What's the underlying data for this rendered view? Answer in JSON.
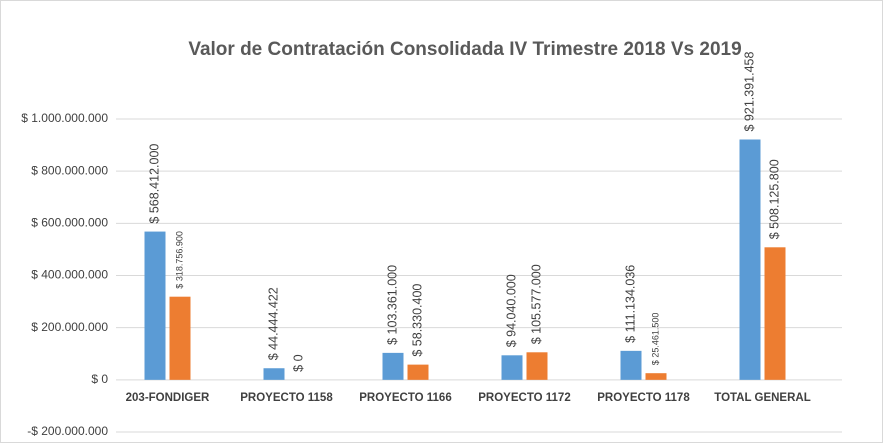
{
  "chart_data": {
    "type": "bar",
    "title": "Valor de Contratación Consolidada IV Trimestre 2018 Vs 2019",
    "categories": [
      "203-FONDIGER",
      "PROYECTO  1158",
      "PROYECTO 1166",
      "PROYECTO 1172",
      "PROYECTO 1178",
      "TOTAL GENERAL"
    ],
    "series": [
      {
        "color": "#5b9bd5",
        "values": [
          568412000,
          44444422,
          103361000,
          94040000,
          111134036,
          921391458
        ],
        "value_labels": [
          "$ 568.412.000",
          "$ 44.444.422",
          "$ 103.361.000",
          "$ 94.040.000",
          "$ 111.134.036",
          "$ 921.391.458"
        ]
      },
      {
        "color": "#ed7d31",
        "values": [
          318756900,
          0,
          58330400,
          105577000,
          25461500,
          508125800
        ],
        "value_labels": [
          "$ 318.756.900",
          "$ 0",
          "$ 58.330.400",
          "$ 105.577.000",
          "$ 25.461.500",
          "$ 508.125.800"
        ]
      }
    ],
    "ylim": [
      -200000000,
      1000000000
    ],
    "yticks": [
      {
        "value": -200000000,
        "label": "-$ 200.000.000"
      },
      {
        "value": 0,
        "label": "$ 0"
      },
      {
        "value": 200000000,
        "label": "$ 200.000.000"
      },
      {
        "value": 400000000,
        "label": "$ 400.000.000"
      },
      {
        "value": 600000000,
        "label": "$ 600.000.000"
      },
      {
        "value": 800000000,
        "label": "$ 800.000.000"
      },
      {
        "value": 1000000000,
        "label": "$ 1.000.000.000"
      }
    ],
    "grid": true
  }
}
